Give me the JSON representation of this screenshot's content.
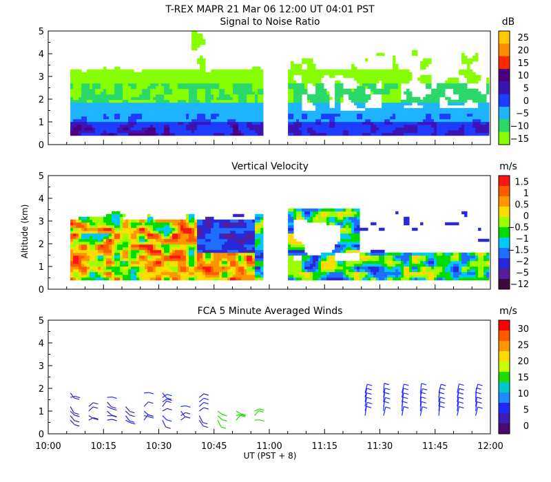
{
  "header": {
    "title": "T-REX   MAPR 21 Mar 06   12:00 UT  04:01   PST"
  },
  "x_axis": {
    "label": "UT  (PST + 8)",
    "ticks": [
      "10:00",
      "10:15",
      "10:30",
      "10:45",
      "11:00",
      "11:15",
      "11:30",
      "11:45",
      "12:00"
    ]
  },
  "chart_data": [
    {
      "type": "heatmap",
      "title": "Signal to Noise Ratio",
      "ylabel": "",
      "xlim_min": [
        0,
        120
      ],
      "ylim": [
        0,
        5
      ],
      "yticks": [
        "0",
        "1",
        "2",
        "3",
        "4",
        "5"
      ],
      "data_gaps_min": [
        [
          58,
          65
        ]
      ],
      "data_start_min": 6,
      "colorbar": {
        "unit": "dB",
        "labels": [
          "25",
          "20",
          "15",
          "10",
          "5",
          "0",
          "−5",
          "−10",
          "−15"
        ],
        "colors": [
          "#ffc800",
          "#ff8c00",
          "#ff2800",
          "#4b0082",
          "#3c14b4",
          "#1e3cff",
          "#1eb4ff",
          "#2ad96a",
          "#88ff00"
        ]
      }
    },
    {
      "type": "heatmap",
      "title": "Vertical Velocity",
      "ylabel": "Altitude (km)",
      "xlim_min": [
        0,
        120
      ],
      "ylim": [
        0,
        5
      ],
      "yticks": [
        "0",
        "1",
        "2",
        "3",
        "4",
        "5"
      ],
      "data_gaps_min": [
        [
          58,
          65
        ]
      ],
      "data_start_min": 6,
      "colorbar": {
        "unit": "m/s",
        "labels": [
          "1.5",
          "1",
          "0.5",
          "0",
          "−0.5",
          "−1",
          "−1.5",
          "−2",
          "−5",
          "−12"
        ],
        "colors": [
          "#ff1414",
          "#ff5a00",
          "#ff9600",
          "#ffdc00",
          "#9bff00",
          "#00dc00",
          "#00c8ff",
          "#1e6eff",
          "#2828dc",
          "#551e9b",
          "#3c0a3c"
        ]
      }
    },
    {
      "type": "scatter",
      "title": "FCA 5 Minute Averaged Winds",
      "ylabel": "",
      "xlim_min": [
        0,
        120
      ],
      "ylim": [
        0,
        5
      ],
      "yticks": [
        "0",
        "1",
        "2",
        "3",
        "4",
        "5"
      ],
      "wind_times_min": [
        6,
        11,
        16,
        21,
        26,
        31,
        36,
        41,
        46,
        51,
        56,
        86,
        91,
        96,
        101,
        106,
        111,
        116
      ],
      "wind_alts_km": [
        0.6,
        0.8,
        1.0,
        1.2,
        1.4,
        1.6,
        1.8
      ],
      "colorbar": {
        "unit": "m/s",
        "labels": [
          "30",
          "25",
          "20",
          "15",
          "10",
          "5",
          "0"
        ],
        "colors": [
          "#ff0000",
          "#ff5a00",
          "#ff9600",
          "#ffdc00",
          "#c8ff00",
          "#1edc00",
          "#00c8c8",
          "#1e8cff",
          "#1e28ff",
          "#3c1eb4",
          "#4b0a6e"
        ]
      }
    }
  ]
}
